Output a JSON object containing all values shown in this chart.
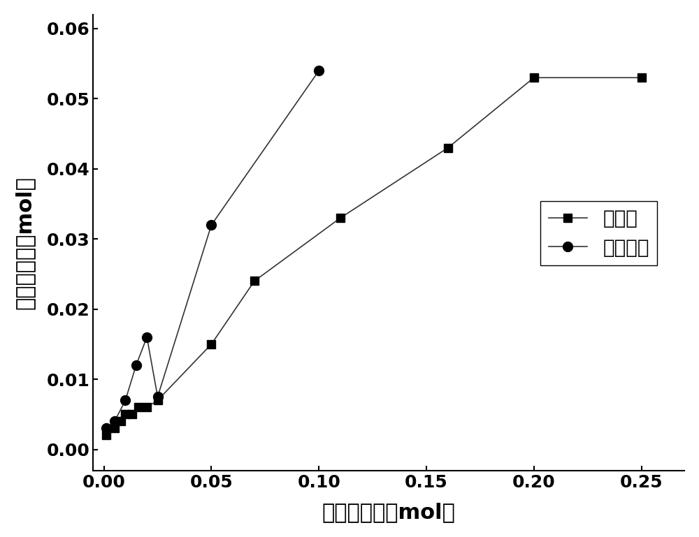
{
  "hf_x": [
    0.001,
    0.005,
    0.008,
    0.01,
    0.013,
    0.016,
    0.02,
    0.025,
    0.05,
    0.07,
    0.11,
    0.16,
    0.2,
    0.25
  ],
  "hf_y": [
    0.002,
    0.003,
    0.004,
    0.005,
    0.005,
    0.006,
    0.006,
    0.007,
    0.015,
    0.024,
    0.033,
    0.043,
    0.053,
    0.053
  ],
  "naoh_x": [
    0.001,
    0.005,
    0.01,
    0.015,
    0.02,
    0.025,
    0.05,
    0.1
  ],
  "naoh_y": [
    0.003,
    0.004,
    0.007,
    0.012,
    0.016,
    0.0075,
    0.032,
    0.054
  ],
  "xlabel": "浸出剂用量（mol）",
  "ylabel": "石英溢解量（mol）",
  "legend_hf": "氢氟酸",
  "legend_naoh": "氢氧化錢",
  "line_color": "#333333",
  "marker_color": "#000000",
  "xlim": [
    -0.005,
    0.27
  ],
  "ylim": [
    -0.003,
    0.062
  ],
  "xticks": [
    0.0,
    0.05,
    0.1,
    0.15,
    0.2,
    0.25
  ],
  "yticks": [
    0.0,
    0.01,
    0.02,
    0.03,
    0.04,
    0.05,
    0.06
  ],
  "xlabel_fontsize": 22,
  "ylabel_fontsize": 22,
  "tick_fontsize": 18,
  "legend_fontsize": 20,
  "marker_size_square": 9,
  "marker_size_circle": 10,
  "linewidth": 1.2
}
